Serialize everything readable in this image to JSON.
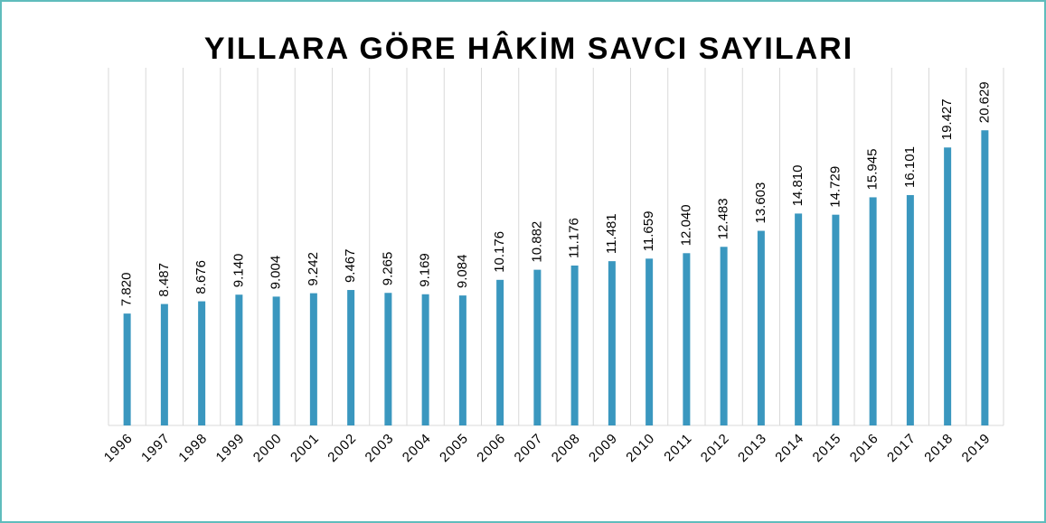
{
  "chart_data": {
    "type": "bar",
    "title": "YILLARA GÖRE HÂKİM SAVCI SAYILARI",
    "categories": [
      "1996",
      "1997",
      "1998",
      "1999",
      "2000",
      "2001",
      "2002",
      "2003",
      "2004",
      "2005",
      "2006",
      "2007",
      "2008",
      "2009",
      "2010",
      "2011",
      "2012",
      "2013",
      "2014",
      "2015",
      "2016",
      "2017",
      "2018",
      "2019"
    ],
    "values": [
      7820,
      8487,
      8676,
      9140,
      9004,
      9242,
      9467,
      9265,
      9169,
      9084,
      10176,
      10882,
      11176,
      11481,
      11659,
      12040,
      12483,
      13603,
      14810,
      14729,
      15945,
      16101,
      19427,
      20629
    ],
    "value_labels": [
      "7.820",
      "8.487",
      "8.676",
      "9.140",
      "9.004",
      "9.242",
      "9.467",
      "9.265",
      "9.169",
      "9.084",
      "10.176",
      "10.882",
      "11.176",
      "11.481",
      "11.659",
      "12.040",
      "12.483",
      "13.603",
      "14.810",
      "14.729",
      "15.945",
      "16.101",
      "19.427",
      "20.629"
    ],
    "color": "#3a97bf",
    "ylim": [
      0,
      25000
    ]
  }
}
